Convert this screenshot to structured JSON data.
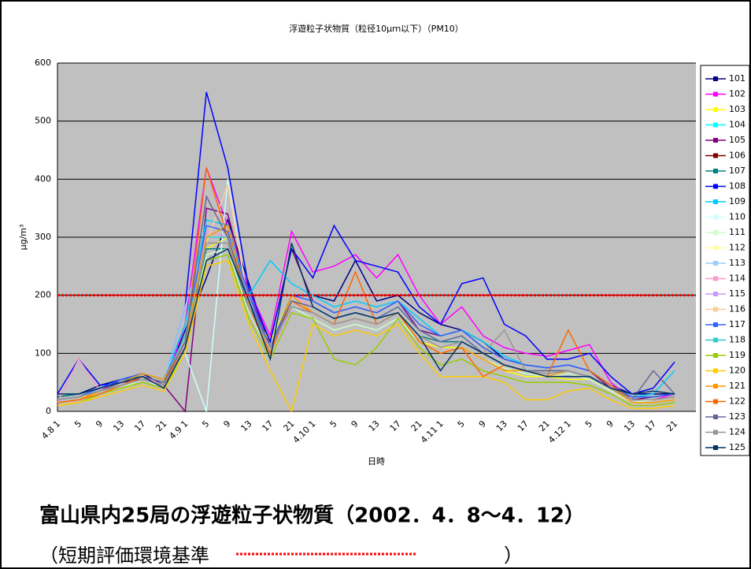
{
  "chart_data": {
    "type": "line",
    "title": "浮遊粒子状物質（粒径10μｍ以下）（PM10）",
    "y_label": "μg/m³",
    "x_label": "日時",
    "categories": [
      "4.8 1",
      "5",
      "9",
      "13",
      "17",
      "21",
      "4.9 1",
      "5",
      "9",
      "13",
      "17",
      "21",
      "4.10 1",
      "5",
      "9",
      "13",
      "17",
      "21",
      "4.11 1",
      "5",
      "9",
      "13",
      "17",
      "21",
      "4.12 1",
      "5",
      "9",
      "13",
      "17",
      "21"
    ],
    "ylim": [
      0,
      600
    ],
    "yticks": [
      0,
      100,
      200,
      300,
      400,
      500,
      600
    ],
    "grid": true,
    "standard_line": {
      "value": 200,
      "color": "#ff0000"
    },
    "series": [
      {
        "name": "101",
        "color": "#000080",
        "values": [
          25,
          30,
          45,
          55,
          65,
          45,
          140,
          230,
          330,
          220,
          110,
          200,
          200,
          190,
          260,
          190,
          200,
          170,
          150,
          140,
          120,
          90,
          80,
          75,
          80,
          70,
          45,
          30,
          30,
          30
        ]
      },
      {
        "name": "102",
        "color": "#ff00ff",
        "values": [
          15,
          20,
          35,
          55,
          60,
          40,
          150,
          420,
          320,
          210,
          130,
          310,
          240,
          250,
          270,
          230,
          270,
          200,
          150,
          180,
          130,
          110,
          100,
          95,
          105,
          115,
          50,
          20,
          20,
          30
        ]
      },
      {
        "name": "103",
        "color": "#ffff00",
        "values": [
          20,
          25,
          30,
          40,
          55,
          45,
          110,
          280,
          300,
          180,
          120,
          200,
          170,
          150,
          160,
          150,
          170,
          120,
          110,
          110,
          90,
          70,
          60,
          60,
          55,
          55,
          35,
          15,
          15,
          20
        ]
      },
      {
        "name": "104",
        "color": "#00ffff",
        "values": [
          15,
          20,
          35,
          45,
          60,
          50,
          130,
          310,
          300,
          190,
          110,
          190,
          180,
          160,
          170,
          160,
          180,
          140,
          120,
          130,
          100,
          80,
          70,
          70,
          70,
          60,
          40,
          20,
          20,
          25
        ]
      },
      {
        "name": "105",
        "color": "#800080",
        "values": [
          20,
          25,
          40,
          50,
          55,
          45,
          0,
          350,
          340,
          200,
          120,
          280,
          190,
          170,
          180,
          170,
          190,
          140,
          130,
          140,
          110,
          90,
          80,
          75,
          80,
          70,
          40,
          20,
          25,
          30
        ]
      },
      {
        "name": "106",
        "color": "#800000",
        "values": [
          15,
          20,
          35,
          45,
          55,
          40,
          110,
          290,
          290,
          170,
          100,
          180,
          170,
          150,
          160,
          150,
          170,
          130,
          110,
          120,
          100,
          80,
          70,
          65,
          70,
          60,
          40,
          20,
          20,
          25
        ]
      },
      {
        "name": "107",
        "color": "#008080",
        "values": [
          25,
          30,
          40,
          55,
          60,
          45,
          120,
          280,
          280,
          180,
          110,
          190,
          180,
          160,
          170,
          160,
          170,
          130,
          120,
          120,
          100,
          80,
          70,
          70,
          70,
          60,
          40,
          25,
          25,
          30
        ]
      },
      {
        "name": "108",
        "color": "#0000ff",
        "values": [
          30,
          90,
          45,
          50,
          60,
          50,
          180,
          550,
          420,
          210,
          120,
          280,
          230,
          320,
          260,
          250,
          240,
          180,
          150,
          220,
          230,
          150,
          130,
          90,
          90,
          100,
          60,
          30,
          40,
          85
        ]
      },
      {
        "name": "109",
        "color": "#00ccff",
        "values": [
          20,
          25,
          40,
          50,
          65,
          55,
          150,
          330,
          320,
          200,
          260,
          220,
          200,
          180,
          190,
          180,
          190,
          160,
          130,
          140,
          120,
          95,
          80,
          75,
          80,
          70,
          45,
          25,
          30,
          70
        ]
      },
      {
        "name": "110",
        "color": "#ccffff",
        "values": [
          15,
          20,
          35,
          45,
          55,
          40,
          100,
          0,
          400,
          180,
          110,
          200,
          170,
          150,
          160,
          150,
          170,
          130,
          110,
          120,
          100,
          80,
          70,
          65,
          70,
          60,
          40,
          20,
          20,
          25
        ]
      },
      {
        "name": "111",
        "color": "#ccffcc",
        "values": [
          15,
          20,
          30,
          40,
          55,
          45,
          100,
          270,
          280,
          170,
          100,
          180,
          160,
          140,
          150,
          140,
          160,
          120,
          100,
          110,
          90,
          75,
          65,
          60,
          65,
          55,
          35,
          15,
          20,
          25
        ]
      },
      {
        "name": "112",
        "color": "#ffff99",
        "values": [
          20,
          25,
          35,
          45,
          60,
          50,
          110,
          290,
          290,
          180,
          110,
          190,
          170,
          150,
          160,
          150,
          170,
          130,
          110,
          120,
          100,
          80,
          70,
          65,
          70,
          60,
          40,
          20,
          20,
          25
        ]
      },
      {
        "name": "113",
        "color": "#99ccff",
        "values": [
          20,
          25,
          40,
          50,
          60,
          50,
          180,
          300,
          300,
          190,
          110,
          190,
          180,
          160,
          170,
          160,
          180,
          140,
          120,
          130,
          100,
          80,
          70,
          70,
          70,
          60,
          40,
          20,
          20,
          25
        ]
      },
      {
        "name": "114",
        "color": "#ff99cc",
        "values": [
          15,
          90,
          35,
          50,
          60,
          45,
          120,
          310,
          300,
          190,
          110,
          200,
          180,
          160,
          170,
          160,
          180,
          140,
          120,
          130,
          100,
          80,
          70,
          70,
          70,
          60,
          40,
          20,
          20,
          25
        ]
      },
      {
        "name": "115",
        "color": "#cc99ff",
        "values": [
          15,
          20,
          35,
          45,
          55,
          45,
          110,
          290,
          290,
          180,
          100,
          180,
          170,
          150,
          160,
          150,
          170,
          130,
          110,
          120,
          100,
          80,
          70,
          65,
          70,
          60,
          40,
          20,
          20,
          25
        ]
      },
      {
        "name": "116",
        "color": "#ffcc99",
        "values": [
          20,
          25,
          35,
          45,
          55,
          45,
          110,
          290,
          390,
          180,
          110,
          190,
          170,
          150,
          160,
          150,
          170,
          130,
          110,
          120,
          100,
          80,
          70,
          65,
          70,
          60,
          40,
          20,
          20,
          25
        ]
      },
      {
        "name": "117",
        "color": "#3366ff",
        "values": [
          20,
          25,
          40,
          55,
          65,
          55,
          130,
          320,
          310,
          200,
          110,
          200,
          190,
          170,
          180,
          170,
          190,
          150,
          130,
          140,
          110,
          90,
          80,
          75,
          80,
          70,
          45,
          25,
          25,
          30
        ]
      },
      {
        "name": "118",
        "color": "#33cccc",
        "values": [
          20,
          25,
          35,
          50,
          60,
          50,
          130,
          300,
          300,
          190,
          110,
          190,
          180,
          160,
          170,
          160,
          180,
          140,
          120,
          130,
          100,
          80,
          70,
          70,
          70,
          60,
          40,
          20,
          20,
          25
        ]
      },
      {
        "name": "119",
        "color": "#99cc00",
        "values": [
          10,
          15,
          30,
          40,
          50,
          40,
          100,
          260,
          270,
          160,
          90,
          170,
          160,
          90,
          80,
          110,
          160,
          110,
          80,
          90,
          70,
          60,
          50,
          50,
          50,
          45,
          30,
          10,
          10,
          15
        ]
      },
      {
        "name": "120",
        "color": "#ffcc00",
        "values": [
          10,
          15,
          25,
          35,
          45,
          35,
          100,
          250,
          260,
          150,
          70,
          0,
          150,
          130,
          140,
          130,
          150,
          100,
          60,
          60,
          60,
          50,
          20,
          20,
          35,
          40,
          20,
          5,
          5,
          10
        ]
      },
      {
        "name": "121",
        "color": "#ff9900",
        "values": [
          15,
          20,
          35,
          50,
          65,
          55,
          120,
          300,
          320,
          180,
          100,
          200,
          170,
          150,
          160,
          150,
          170,
          120,
          100,
          110,
          90,
          70,
          70,
          60,
          70,
          60,
          40,
          15,
          15,
          20
        ]
      },
      {
        "name": "122",
        "color": "#ff6600",
        "values": [
          15,
          20,
          30,
          45,
          60,
          50,
          110,
          420,
          300,
          180,
          100,
          190,
          170,
          150,
          240,
          150,
          170,
          120,
          100,
          110,
          60,
          80,
          70,
          60,
          140,
          70,
          45,
          20,
          20,
          25
        ]
      },
      {
        "name": "123",
        "color": "#666699",
        "values": [
          20,
          25,
          35,
          50,
          60,
          50,
          120,
          370,
          300,
          190,
          110,
          190,
          180,
          160,
          170,
          160,
          180,
          140,
          120,
          130,
          100,
          80,
          70,
          70,
          70,
          60,
          40,
          20,
          70,
          30
        ]
      },
      {
        "name": "124",
        "color": "#969696",
        "values": [
          20,
          25,
          35,
          45,
          55,
          45,
          110,
          290,
          290,
          180,
          110,
          180,
          170,
          150,
          160,
          150,
          170,
          130,
          110,
          120,
          100,
          140,
          70,
          65,
          70,
          60,
          40,
          20,
          20,
          25
        ]
      },
      {
        "name": "125",
        "color": "#003366",
        "values": [
          30,
          30,
          40,
          50,
          60,
          40,
          110,
          260,
          280,
          190,
          90,
          290,
          180,
          160,
          170,
          160,
          170,
          130,
          70,
          120,
          100,
          80,
          70,
          60,
          60,
          60,
          40,
          30,
          35,
          30
        ]
      }
    ],
    "caption": "富山県内25局の浮遊粒子状物質（2002．4．8～4．12）",
    "note_open": "（短期評価環境基準",
    "note_close": "）"
  }
}
